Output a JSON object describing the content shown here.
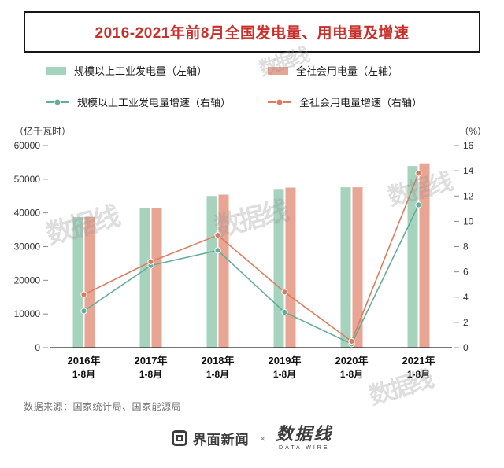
{
  "title": "2016-2021年前8月全国发电量、用电量及增速",
  "legend": [
    {
      "label": "规模以上工业发电量（左轴）",
      "type": "bar",
      "color": "#a5d3bd"
    },
    {
      "label": "全社会用电量（左轴）",
      "type": "bar",
      "color": "#e9a594"
    },
    {
      "label": "规模以上工业发电量增速（右轴）",
      "type": "line",
      "color": "#63ad99"
    },
    {
      "label": "全社会用电量增速（右轴）",
      "type": "line",
      "color": "#dd7b5e"
    }
  ],
  "chart_data": {
    "type": "bar+line combo",
    "categories": [
      "2016年 1-8月",
      "2017年 1-8月",
      "2018年 1-8月",
      "2019年 1-8月",
      "2020年 1-8月",
      "2021年 1-8月"
    ],
    "left_axis": {
      "label": "（亿千瓦时）",
      "min": 0,
      "max": 60000,
      "step": 10000
    },
    "right_axis": {
      "label": "（%）",
      "min": 0,
      "max": 16,
      "step": 2
    },
    "grid": false,
    "legend_position": "top",
    "series": [
      {
        "name": "规模以上工业发电量（左轴）",
        "type": "bar",
        "axis": "left",
        "color": "#a5d3bd",
        "values": [
          38800,
          41500,
          45000,
          47100,
          47600,
          53900
        ]
      },
      {
        "name": "全社会用电量（左轴）",
        "type": "bar",
        "axis": "left",
        "color": "#e9a594",
        "values": [
          38800,
          41500,
          45400,
          47500,
          47600,
          54700
        ]
      },
      {
        "name": "规模以上工业发电量增速（右轴）",
        "type": "line",
        "axis": "right",
        "color": "#63ad99",
        "values": [
          2.9,
          6.5,
          7.7,
          2.8,
          0.3,
          11.3
        ]
      },
      {
        "name": "全社会用电量增速（右轴）",
        "type": "line",
        "axis": "right",
        "color": "#dd7b5e",
        "values": [
          4.2,
          6.8,
          8.9,
          4.4,
          0.5,
          13.8
        ]
      }
    ]
  },
  "source": "数据来源：国家统计局、国家能源局",
  "watermark": "数据线",
  "footer": {
    "jiemian": "界面新闻",
    "separator": "×",
    "datawire": "数据线",
    "datawire_sub": "DATA WIRE"
  }
}
